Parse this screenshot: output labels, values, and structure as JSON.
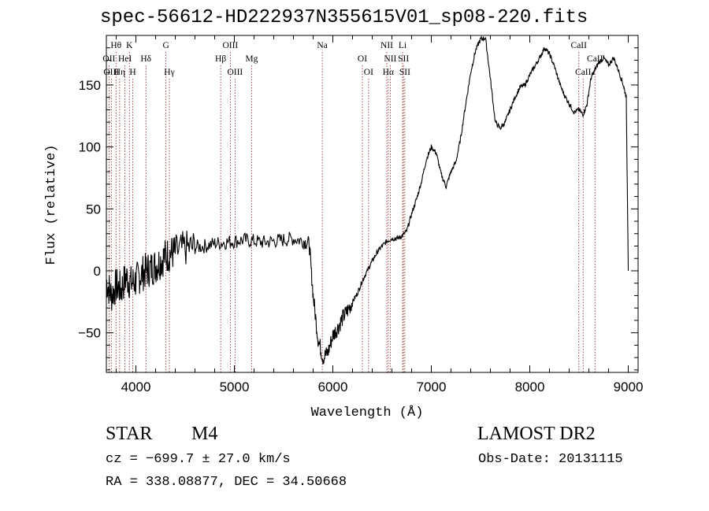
{
  "title": "spec-56612-HD222937N355615V01_sp08-220.fits",
  "info": {
    "object_type": "STAR",
    "subclass": "M4",
    "survey": "LAMOST DR2",
    "cz": "cz = −699.7 ± 27.0 km/s",
    "obs_date": "Obs-Date: 20131115",
    "radec": "RA = 338.08877, DEC =  34.50668"
  },
  "chart_data": {
    "type": "line",
    "title": "spec-56612-HD222937N355615V01_sp08-220.fits",
    "xlabel": "Wavelength (Å)",
    "ylabel": "Flux (relative)",
    "xlim": [
      3700,
      9100
    ],
    "ylim": [
      -82,
      190
    ],
    "xticks": [
      4000,
      5000,
      6000,
      7000,
      8000,
      9000
    ],
    "yticks": [
      -50,
      0,
      50,
      100,
      150
    ],
    "ytick_labels": [
      "−50",
      "0",
      "50",
      "100",
      "150"
    ],
    "line_color": "#000000",
    "marker_line_color": "#8b1a1a",
    "series": [
      {
        "x": [
          3700,
          3750,
          3800,
          3850,
          3900,
          3950,
          4000,
          4050,
          4100,
          4150,
          4200,
          4250,
          4300,
          4350,
          4400,
          4500,
          4600,
          4700,
          4800,
          4900,
          5000,
          5100,
          5200,
          5300,
          5400,
          5500,
          5600,
          5700,
          5760,
          5800,
          5850,
          5900,
          5950,
          6000,
          6050,
          6100,
          6150,
          6200,
          6250,
          6300,
          6350,
          6400,
          6450,
          6500,
          6550,
          6600,
          6650,
          6700,
          6750,
          6800,
          6850,
          6900,
          6950,
          7000,
          7050,
          7100,
          7150,
          7200,
          7250,
          7300,
          7350,
          7400,
          7450,
          7500,
          7550,
          7600,
          7650,
          7700,
          7750,
          7800,
          7850,
          7900,
          7950,
          8000,
          8050,
          8100,
          8150,
          8200,
          8250,
          8300,
          8350,
          8400,
          8450,
          8500,
          8540,
          8580,
          8620,
          8660,
          8700,
          8750,
          8800,
          8850,
          8900,
          8950,
          8980,
          9000
        ],
        "y": [
          -8,
          -20,
          -12,
          -15,
          -5,
          -10,
          -8,
          -3,
          0,
          2,
          4,
          8,
          12,
          14,
          15,
          18,
          19,
          20,
          22,
          23,
          24,
          25,
          24,
          23,
          24,
          25,
          26,
          24,
          22,
          -20,
          -55,
          -70,
          -66,
          -52,
          -46,
          -38,
          -32,
          -25,
          -18,
          -8,
          0,
          8,
          15,
          20,
          24,
          26,
          26,
          28,
          32,
          46,
          58,
          72,
          90,
          100,
          95,
          78,
          68,
          80,
          88,
          108,
          135,
          160,
          178,
          187,
          188,
          155,
          120,
          115,
          120,
          130,
          140,
          148,
          150,
          158,
          165,
          172,
          180,
          175,
          165,
          152,
          142,
          135,
          128,
          130,
          126,
          134,
          155,
          162,
          168,
          172,
          166,
          172,
          162,
          150,
          140,
          0
        ]
      }
    ],
    "line_markers": [
      {
        "label": "Hθ",
        "x": 3798,
        "row": 1
      },
      {
        "label": "K",
        "x": 3934,
        "row": 1
      },
      {
        "label": "G",
        "x": 4305,
        "row": 1
      },
      {
        "label": "OIII",
        "x": 4959,
        "row": 1
      },
      {
        "label": "Na",
        "x": 5893,
        "row": 1
      },
      {
        "label": "NII",
        "x": 6548,
        "row": 1
      },
      {
        "label": "Li",
        "x": 6708,
        "row": 1
      },
      {
        "label": "CaII",
        "x": 8498,
        "row": 1
      },
      {
        "label": "OII",
        "x": 3727,
        "row": 2
      },
      {
        "label": "HeI",
        "x": 3889,
        "row": 2
      },
      {
        "label": "Hδ",
        "x": 4102,
        "row": 2
      },
      {
        "label": "Hβ",
        "x": 4861,
        "row": 2
      },
      {
        "label": "Mg",
        "x": 5175,
        "row": 2
      },
      {
        "label": "OI",
        "x": 6300,
        "row": 2
      },
      {
        "label": "NII",
        "x": 6583,
        "row": 2
      },
      {
        "label": "SII",
        "x": 6717,
        "row": 2
      },
      {
        "label": "CaII",
        "x": 8662,
        "row": 2
      },
      {
        "label": "OIII",
        "x": 3750,
        "row": 3
      },
      {
        "label": "Hη",
        "x": 3835,
        "row": 3
      },
      {
        "label": "H",
        "x": 3968,
        "row": 3
      },
      {
        "label": "Hγ",
        "x": 4340,
        "row": 3
      },
      {
        "label": "OIII",
        "x": 5007,
        "row": 3
      },
      {
        "label": "OI",
        "x": 6363,
        "row": 3
      },
      {
        "label": "Hα",
        "x": 6563,
        "row": 3
      },
      {
        "label": "SII",
        "x": 6731,
        "row": 3
      },
      {
        "label": "CaII",
        "x": 8542,
        "row": 3
      }
    ]
  }
}
